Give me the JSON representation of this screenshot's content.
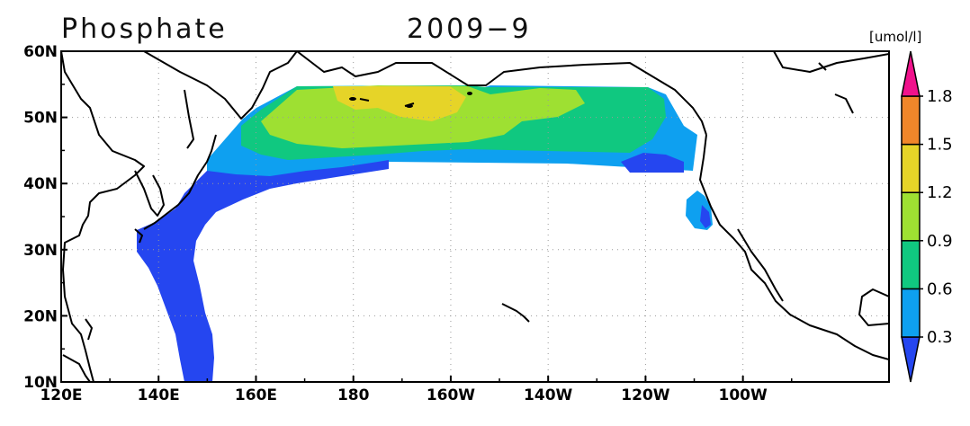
{
  "map": {
    "title": "Phosphate",
    "date": "2009−9",
    "units": "[umol/l]",
    "lon_ticks": [
      "120E",
      "140E",
      "160E",
      "180",
      "160W",
      "140W",
      "120W",
      "100W"
    ],
    "lat_ticks": [
      "60N",
      "50N",
      "40N",
      "30N",
      "20N",
      "10N"
    ],
    "extent": {
      "lon": [
        120,
        290
      ],
      "lat": [
        10,
        60
      ]
    },
    "grid": true
  },
  "colorbar": {
    "levels": [
      "0.3",
      "0.6",
      "0.9",
      "1.2",
      "1.5",
      "1.8"
    ],
    "colors": [
      "#2546f0",
      "#0ea0f0",
      "#10c880",
      "#9ee032",
      "#e6d428",
      "#f0862a",
      "#f0128c"
    ]
  }
}
